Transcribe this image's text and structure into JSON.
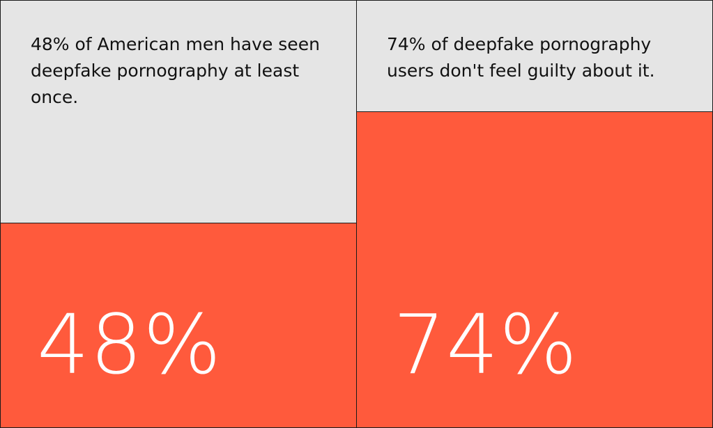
{
  "chart_data": {
    "type": "bar",
    "ylim": [
      0,
      100
    ],
    "colors": {
      "fill": "#ff5a3c",
      "background": "#e5e5e5",
      "border": "#1a1a1a",
      "value_text": "#ffffff",
      "caption_text": "#111111"
    },
    "panels": [
      {
        "caption": "48% of American men have seen deepfake pornography at least once.",
        "value": 48,
        "value_label": "48%"
      },
      {
        "caption": "74% of deepfake pornography users don't feel guilty about it.",
        "value": 74,
        "value_label": "74%"
      }
    ]
  }
}
